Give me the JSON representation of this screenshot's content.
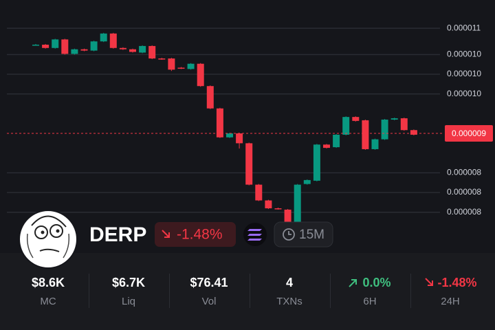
{
  "chart_data": {
    "type": "candlestick",
    "open": [
      1.035e-05,
      1.035e-05,
      1.03e-05,
      1.043e-05,
      1.021e-05,
      1.028e-05,
      1.026e-05,
      1.04e-05,
      1.052e-05,
      1.03e-05,
      1.028e-05,
      1.023e-05,
      1.033e-05,
      1.014e-05,
      1.014e-05,
      1e-05,
      9.98e-06,
      1.006e-05,
      9.72e-06,
      9.38e-06,
      8.94e-06,
      9e-06,
      8.85e-06,
      8.22e-06,
      7.98e-06,
      7.86e-06,
      7.84e-06,
      7.58e-06,
      8.23e-06,
      8.28e-06,
      8.83e-06,
      8.79e-06,
      8.98e-06,
      9.25e-06,
      9.2e-06,
      8.76e-06,
      8.91e-06,
      9.21e-06,
      9.23e-06,
      9.05e-06
    ],
    "high": [
      1.036e-05,
      1.036e-05,
      1.044e-05,
      1.044e-05,
      1.029e-05,
      1.029e-05,
      1.041e-05,
      1.053e-05,
      1.053e-05,
      1.031e-05,
      1.029e-05,
      1.034e-05,
      1.034e-05,
      1.015e-05,
      1.015e-05,
      1.001e-05,
      1.007e-05,
      1.007e-05,
      9.73e-06,
      9.39e-06,
      9.01e-06,
      9.01e-06,
      8.86e-06,
      8.23e-06,
      7.99e-06,
      7.87e-06,
      7.85e-06,
      8.23e-06,
      8.3e-06,
      8.84e-06,
      8.84e-06,
      8.99e-06,
      9.26e-06,
      9.26e-06,
      9.21e-06,
      8.92e-06,
      9.22e-06,
      9.24e-06,
      9.24e-06,
      9.06e-06
    ],
    "low": [
      1.034e-05,
      1.029e-05,
      1.029e-05,
      1.02e-05,
      1.02e-05,
      1.025e-05,
      1.025e-05,
      1.039e-05,
      1.029e-05,
      1.027e-05,
      1.023e-05,
      1.022e-05,
      1.013e-05,
      1.012e-05,
      9.95e-06,
      9.98e-06,
      9.97e-06,
      9.71e-06,
      9.37e-06,
      8.93e-06,
      8.93e-06,
      8.77e-06,
      8.21e-06,
      7.97e-06,
      7.85e-06,
      7.84e-06,
      7.48e-06,
      7.57e-06,
      8.22e-06,
      8.27e-06,
      8.77e-06,
      8.78e-06,
      8.97e-06,
      9.18e-06,
      8.75e-06,
      8.75e-06,
      8.9e-06,
      9.2e-06,
      9.04e-06,
      8.97e-06
    ],
    "close": [
      1.035e-05,
      1.03e-05,
      1.043e-05,
      1.021e-05,
      1.028e-05,
      1.026e-05,
      1.04e-05,
      1.052e-05,
      1.03e-05,
      1.028e-05,
      1.024e-05,
      1.033e-05,
      1.014e-05,
      1.013e-05,
      9.97e-06,
      9.99e-06,
      1.006e-05,
      9.72e-06,
      9.38e-06,
      8.94e-06,
      9e-06,
      8.85e-06,
      8.22e-06,
      7.98e-06,
      7.86e-06,
      7.85e-06,
      7.58e-06,
      8.22e-06,
      8.29e-06,
      8.83e-06,
      8.78e-06,
      8.98e-06,
      9.25e-06,
      9.19e-06,
      8.76e-06,
      8.91e-06,
      9.21e-06,
      9.23e-06,
      9.05e-06,
      8.98e-06
    ],
    "up_color": "#089981",
    "down_color": "#f23645",
    "ylim": [
      7.18e-06,
      1.103e-05
    ],
    "yticks": [
      {
        "value": 1.06e-05,
        "label": "0.000011"
      },
      {
        "value": 1.02e-05,
        "label": "0.000010"
      },
      {
        "value": 9.9e-06,
        "label": "0.000010"
      },
      {
        "value": 9.6e-06,
        "label": "0.000010"
      },
      {
        "value": 8.4e-06,
        "label": "0.000008"
      },
      {
        "value": 8.1e-06,
        "label": "0.000008"
      },
      {
        "value": 7.8e-06,
        "label": "0.000008"
      }
    ],
    "grid": true,
    "current_price": 9e-06
  },
  "token": {
    "name": "DERP",
    "change": "-1.48%",
    "interval": "15M"
  },
  "stats": [
    {
      "value": "$8.6K",
      "label": "MC"
    },
    {
      "value": "$6.7K",
      "label": "Liq"
    },
    {
      "value": "$76.41",
      "label": "Vol"
    },
    {
      "value": "4",
      "label": "TXNs"
    },
    {
      "value": "0.0%",
      "label": "6H"
    },
    {
      "value": "-1.48%",
      "label": "24H"
    }
  ]
}
